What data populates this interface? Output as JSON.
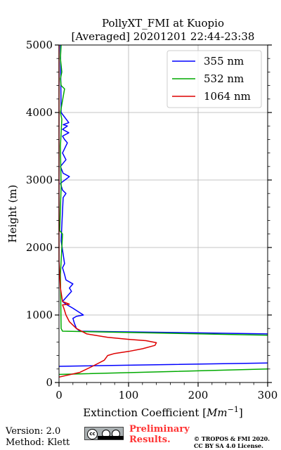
{
  "chart_data": {
    "type": "line",
    "title": [
      "PollyXT_FMI at Kuopio",
      "[Averaged] 20201201 22:44-23:38"
    ],
    "xlabel": "Extinction Coefficient [Mm⁻¹]",
    "ylabel": "Height (m)",
    "xlim": [
      0,
      300
    ],
    "ylim": [
      0,
      5000
    ],
    "xticks": [
      0,
      100,
      200,
      300
    ],
    "yticks": [
      0,
      1000,
      2000,
      3000,
      4000,
      5000
    ],
    "grid": true,
    "legend_position": "top-right",
    "series": [
      {
        "name": "355 nm",
        "color": "#0000ff",
        "x": [
          0,
          300,
          null,
          300,
          30,
          25,
          22,
          20,
          25,
          35,
          20,
          10,
          5,
          18,
          15,
          20,
          10,
          8,
          5,
          8,
          3,
          6,
          10,
          5,
          2,
          15,
          6,
          2,
          10,
          5,
          12,
          8,
          5,
          14,
          5,
          12,
          6,
          14,
          3,
          2
        ],
        "y": [
          240,
          290,
          null,
          720,
          760,
          800,
          880,
          950,
          980,
          1000,
          1100,
          1160,
          1200,
          1350,
          1400,
          1460,
          1520,
          1600,
          1700,
          1760,
          2100,
          2740,
          2800,
          2850,
          2950,
          3050,
          3100,
          3200,
          3300,
          3400,
          3550,
          3600,
          3650,
          3700,
          3750,
          3800,
          3820,
          3850,
          4000,
          5000
        ]
      },
      {
        "name": "532 nm",
        "color": "#00aa00",
        "x": [
          0,
          300,
          null,
          300,
          5,
          3,
          2,
          5,
          1,
          3,
          2,
          4,
          2,
          8,
          3,
          2,
          4,
          2,
          3
        ],
        "y": [
          120,
          200,
          null,
          700,
          760,
          800,
          1600,
          2200,
          2250,
          2900,
          3500,
          3900,
          4000,
          4350,
          4400,
          4500,
          4600,
          4800,
          5000
        ]
      },
      {
        "name": "1064 nm",
        "color": "#dd0000",
        "x": [
          0,
          30,
          50,
          65,
          70,
          80,
          100,
          120,
          138,
          140,
          125,
          100,
          70,
          40,
          25,
          15,
          10,
          7,
          5,
          15,
          5,
          2,
          0,
          0
        ],
        "y": [
          80,
          150,
          250,
          330,
          400,
          430,
          460,
          500,
          550,
          590,
          620,
          640,
          670,
          720,
          800,
          900,
          1000,
          1100,
          1150,
          1160,
          1200,
          1400,
          1800,
          5000
        ]
      }
    ]
  },
  "footer": {
    "version": "Version: 2.0",
    "method": "Method: Klett",
    "prelim": [
      "Preliminary",
      "Results."
    ],
    "copyright": [
      "© TROPOS & FMI 2020.",
      "CC BY SA 4.0 License."
    ]
  }
}
